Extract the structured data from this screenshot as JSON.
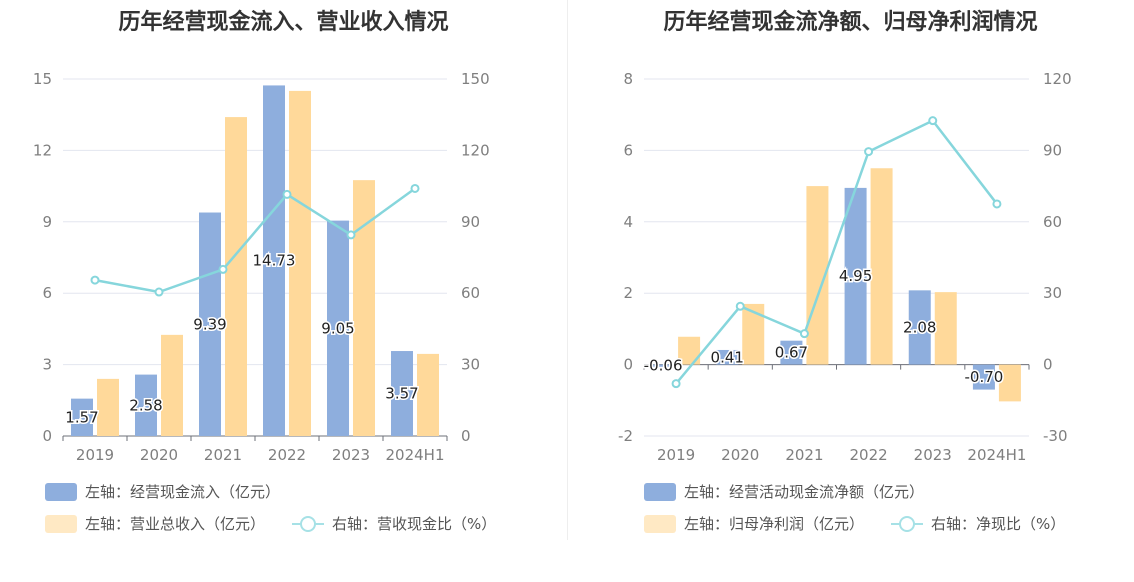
{
  "chart_data": [
    {
      "type": "bar",
      "title": "历年经营现金流入、营业收入情况",
      "categories": [
        "2019",
        "2020",
        "2021",
        "2022",
        "2023",
        "2024H1"
      ],
      "left_axis": {
        "min": 0,
        "max": 15,
        "ticks": [
          "0",
          "3",
          "6",
          "9",
          "12",
          "15"
        ]
      },
      "right_axis": {
        "min": 0,
        "max": 150,
        "ticks": [
          "0",
          "30",
          "60",
          "90",
          "120",
          "150"
        ]
      },
      "grid": true,
      "legend_position": "bottom-left",
      "series": [
        {
          "name": "左轴：经营现金流入（亿元）",
          "kind": "bar",
          "axis": "left",
          "color": "#8eaedd",
          "values": [
            1.57,
            2.58,
            9.39,
            14.73,
            9.05,
            3.57
          ],
          "labels": [
            "1.57",
            "2.58",
            "9.39",
            "14.73",
            "9.05",
            "3.57"
          ]
        },
        {
          "name": "左轴：营业总收入（亿元）",
          "kind": "bar",
          "axis": "left",
          "color": "#ffd99a",
          "values": [
            2.4,
            4.25,
            13.4,
            14.5,
            10.75,
            3.45
          ]
        },
        {
          "name": "右轴：营收现金比（%）",
          "kind": "line",
          "axis": "right",
          "color": "#86d6dc",
          "values": [
            65.5,
            60.5,
            70.0,
            101.5,
            84.5,
            104.0
          ]
        }
      ]
    },
    {
      "type": "bar",
      "title": "历年经营现金流净额、归母净利润情况",
      "categories": [
        "2019",
        "2020",
        "2021",
        "2022",
        "2023",
        "2024H1"
      ],
      "left_axis": {
        "min": -2,
        "max": 8,
        "ticks": [
          "-2",
          "0",
          "2",
          "4",
          "6",
          "8"
        ]
      },
      "right_axis": {
        "min": -30,
        "max": 120,
        "ticks": [
          "-30",
          "0",
          "30",
          "60",
          "90",
          "120"
        ]
      },
      "grid": true,
      "legend_position": "bottom-left",
      "series": [
        {
          "name": "左轴：经营活动现金流净额（亿元）",
          "kind": "bar",
          "axis": "left",
          "color": "#8eaedd",
          "values": [
            -0.06,
            0.41,
            0.67,
            4.95,
            2.08,
            -0.7
          ],
          "labels": [
            "-0.06",
            "0.41",
            "0.67",
            "4.95",
            "2.08",
            "-0.70"
          ]
        },
        {
          "name": "左轴：归母净利润（亿元）",
          "kind": "bar",
          "axis": "left",
          "color": "#ffd99a",
          "values": [
            0.78,
            1.7,
            5.0,
            5.5,
            2.03,
            -1.03
          ]
        },
        {
          "name": "右轴：净现比（%）",
          "kind": "line",
          "axis": "right",
          "color": "#86d6dc",
          "values": [
            -8.0,
            24.5,
            13.0,
            89.5,
            102.5,
            67.5
          ]
        }
      ]
    }
  ]
}
